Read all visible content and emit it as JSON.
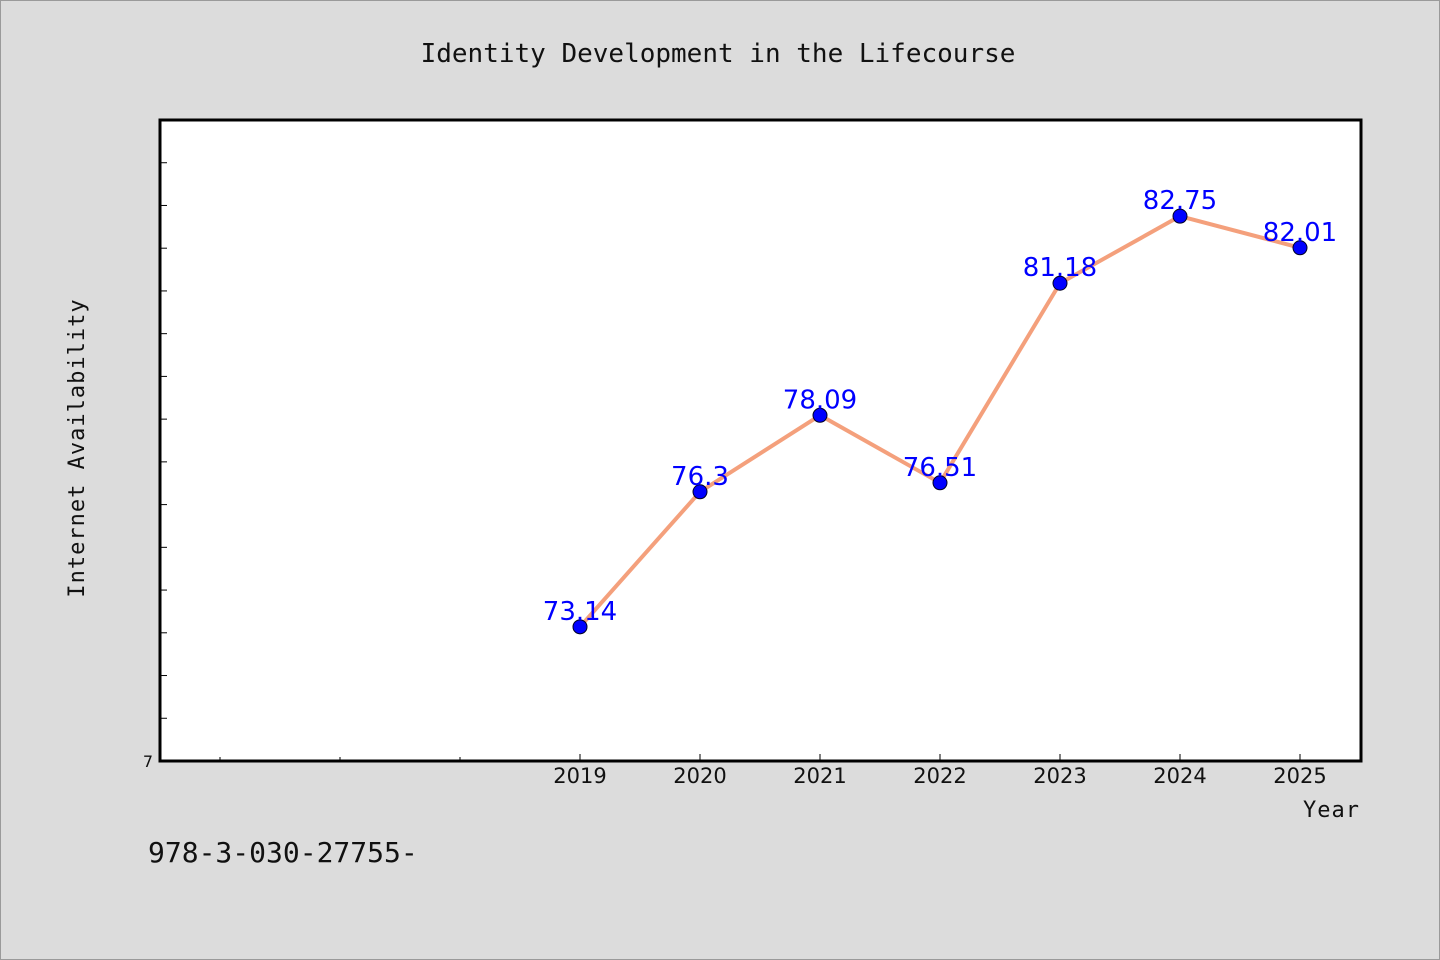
{
  "chart_data": {
    "type": "line",
    "title": "Identity Development in the Lifecourse",
    "xlabel": "Year",
    "ylabel": "Internet Availability",
    "categories": [
      "2019",
      "2020",
      "2021",
      "2022",
      "2023",
      "2024",
      "2025"
    ],
    "series": [
      {
        "values": [
          73.14,
          76.3,
          78.09,
          76.51,
          81.18,
          82.75,
          82.01
        ],
        "labels": [
          "73.14",
          "76.3",
          "78.09",
          "76.51",
          "81.18",
          "82.75",
          "82.01"
        ]
      }
    ],
    "y_tick_label": "7",
    "ylim": [
      70.0,
      85.0
    ],
    "grid": false,
    "line_color": "#f4a07c",
    "marker_color": "#0000ff",
    "label_color": "#0000ff"
  },
  "footer": {
    "text": "978-3-030-27755-"
  }
}
